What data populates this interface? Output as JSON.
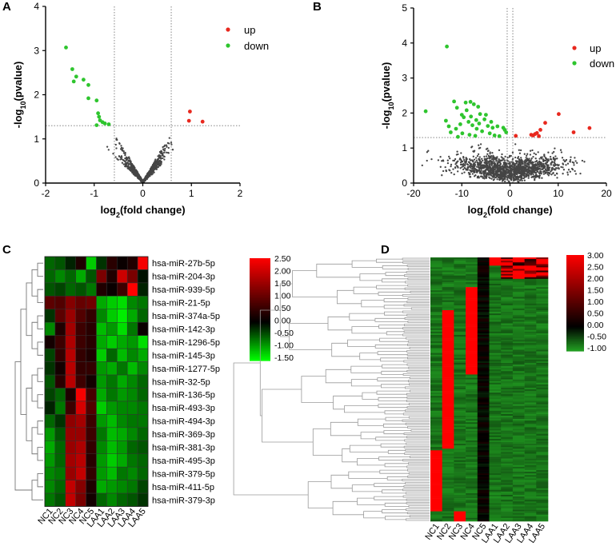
{
  "panels": [
    "A",
    "B",
    "C",
    "D"
  ],
  "chart_data": [
    {
      "panel": "A",
      "type": "scatter",
      "title": "",
      "xlabel": "log2(fold change)",
      "ylabel": "-log10(pvalue)",
      "xlim": [
        -2,
        2
      ],
      "ylim": [
        0,
        4
      ],
      "xticks": [
        "-2",
        "-1",
        "0",
        "1",
        "2"
      ],
      "yticks": [
        "0",
        "1",
        "2",
        "3",
        "4"
      ],
      "thresholds": {
        "x": [
          -0.585,
          0.585
        ],
        "y": 1.3
      },
      "legend": {
        "position": "top-right"
      },
      "series": [
        {
          "name": "up",
          "color": "#e8281e",
          "points": [
            [
              0.97,
              1.62
            ],
            [
              0.95,
              1.41
            ],
            [
              1.23,
              1.39
            ]
          ]
        },
        {
          "name": "down",
          "color": "#2ec52e",
          "points": [
            [
              -1.58,
              3.07
            ],
            [
              -1.45,
              2.58
            ],
            [
              -1.37,
              2.41
            ],
            [
              -1.42,
              2.3
            ],
            [
              -1.22,
              2.34
            ],
            [
              -1.12,
              2.22
            ],
            [
              -1.12,
              1.92
            ],
            [
              -0.95,
              1.87
            ],
            [
              -0.92,
              1.58
            ],
            [
              -0.9,
              1.5
            ],
            [
              -0.88,
              1.42
            ],
            [
              -0.83,
              1.38
            ],
            [
              -0.78,
              1.35
            ],
            [
              -0.7,
              1.33
            ],
            [
              -0.95,
              1.31
            ]
          ]
        }
      ],
      "background": {
        "color": "#454545",
        "note": "non-significant points"
      }
    },
    {
      "panel": "B",
      "type": "scatter",
      "title": "",
      "xlabel": "log2(fold change)",
      "ylabel": "-log10(pvalue)",
      "xlim": [
        -20,
        20
      ],
      "ylim": [
        0,
        5
      ],
      "xticks": [
        "-20",
        "-10",
        "0",
        "10",
        "20"
      ],
      "yticks": [
        "0",
        "1",
        "2",
        "3",
        "4",
        "5"
      ],
      "thresholds": {
        "x": [
          -0.585,
          0.585
        ],
        "y": 1.3
      },
      "legend": {
        "position": "top-right"
      },
      "series": [
        {
          "name": "up",
          "color": "#e8281e",
          "points": [
            [
              16.5,
              1.57
            ],
            [
              13.2,
              1.45
            ],
            [
              10.1,
              1.97
            ],
            [
              7.3,
              1.72
            ],
            [
              6.3,
              1.52
            ],
            [
              5.6,
              1.43
            ],
            [
              5.2,
              1.4
            ],
            [
              4.4,
              1.38
            ],
            [
              4.8,
              1.36
            ],
            [
              1.2,
              1.35
            ],
            [
              6.0,
              1.34
            ]
          ]
        },
        {
          "name": "down",
          "color": "#2ec52e",
          "points": [
            [
              -13.1,
              3.9
            ],
            [
              -17.5,
              2.05
            ],
            [
              -13.3,
              1.78
            ],
            [
              -11.6,
              2.33
            ],
            [
              -11.0,
              2.15
            ],
            [
              -9.2,
              2.3
            ],
            [
              -8.2,
              2.32
            ],
            [
              -7.5,
              2.25
            ],
            [
              -6.6,
              2.18
            ],
            [
              -6.2,
              1.97
            ],
            [
              -5.3,
              1.82
            ],
            [
              -4.6,
              1.63
            ],
            [
              -3.6,
              1.58
            ],
            [
              -2.6,
              1.62
            ],
            [
              -1.4,
              1.58
            ],
            [
              -1.1,
              1.52
            ],
            [
              -0.8,
              1.45
            ],
            [
              -9.6,
              1.88
            ],
            [
              -8.6,
              1.75
            ],
            [
              -10.3,
              1.68
            ],
            [
              -7.8,
              1.65
            ],
            [
              -6.9,
              1.55
            ],
            [
              -5.8,
              1.48
            ],
            [
              -11.2,
              1.55
            ],
            [
              -12.3,
              1.45
            ],
            [
              -9.9,
              1.42
            ],
            [
              -8.4,
              1.38
            ],
            [
              -7.2,
              1.35
            ],
            [
              -4.2,
              1.42
            ],
            [
              -3.2,
              1.36
            ],
            [
              -2.2,
              1.34
            ],
            [
              -10.8,
              1.32
            ],
            [
              -6.4,
              1.7
            ],
            [
              -9.0,
              2.08
            ],
            [
              -5.0,
              1.95
            ],
            [
              -3.9,
              1.75
            ],
            [
              -10.0,
              1.95
            ],
            [
              -8.1,
              1.9
            ],
            [
              -7.0,
              1.8
            ],
            [
              -12.7,
              1.62
            ]
          ]
        }
      ],
      "background": {
        "color": "#454545",
        "note": "non-significant points"
      }
    },
    {
      "panel": "C",
      "type": "heatmap",
      "title": "",
      "columns": [
        "NC1",
        "NC2",
        "NC3",
        "NC4",
        "NC5",
        "LAA1",
        "LAA2",
        "LAA3",
        "LAA4",
        "LAA5"
      ],
      "rows": [
        "hsa-miR-27b-5p",
        "hsa-miR-204-3p",
        "hsa-miR-939-5p",
        "hsa-miR-21-5p",
        "hsa-miR-374a-5p",
        "hsa-miR-142-3p",
        "hsa-miR-1296-5p",
        "hsa-miR-145-3p",
        "hsa-miR-1277-5p",
        "hsa-miR-32-5p",
        "hsa-miR-136-5p",
        "hsa-miR-493-3p",
        "hsa-miR-494-3p",
        "hsa-miR-369-3p",
        "hsa-miR-381-3p",
        "hsa-miR-495-3p",
        "hsa-miR-379-5p",
        "hsa-miR-411-5p",
        "hsa-miR-379-3p"
      ],
      "values": [
        [
          -0.6,
          -0.5,
          -0.2,
          0.3,
          -1.2,
          -0.3,
          0.4,
          0.1,
          0.3,
          2.4
        ],
        [
          -0.6,
          -0.8,
          -0.6,
          -1.0,
          -0.5,
          1.2,
          0.3,
          2.0,
          1.2,
          -0.1
        ],
        [
          -0.5,
          -0.4,
          -0.6,
          -0.5,
          -0.7,
          0.3,
          0.1,
          0.6,
          2.5,
          -0.2
        ],
        [
          0.9,
          0.8,
          1.3,
          1.0,
          1.1,
          -1.0,
          -1.2,
          -1.3,
          -0.8,
          -0.7
        ],
        [
          -0.3,
          0.9,
          1.5,
          0.8,
          0.5,
          -0.8,
          -1.2,
          -1.4,
          -1.0,
          -0.6
        ],
        [
          -0.8,
          0.3,
          1.6,
          0.6,
          0.4,
          -1.1,
          -0.9,
          -1.3,
          -0.7,
          0.1
        ],
        [
          0.2,
          0.6,
          1.7,
          0.6,
          0.4,
          -1.0,
          -1.2,
          -1.0,
          -0.9,
          -1.3
        ],
        [
          -0.4,
          0.5,
          1.8,
          0.5,
          0.3,
          -1.2,
          -0.6,
          -1.1,
          -0.8,
          -1.0
        ],
        [
          -0.3,
          0.2,
          1.8,
          0.5,
          0.5,
          -0.9,
          -1.0,
          -0.7,
          -1.1,
          -0.8
        ],
        [
          -0.5,
          0.4,
          1.8,
          0.6,
          0.2,
          -0.9,
          -0.7,
          -1.0,
          -0.8,
          -0.6
        ],
        [
          -0.4,
          -0.6,
          0.3,
          2.4,
          0.7,
          -1.0,
          -0.7,
          -0.9,
          -0.8,
          -0.6
        ],
        [
          -0.2,
          -0.7,
          0.6,
          2.1,
          0.8,
          -1.2,
          -0.9,
          -0.8,
          -0.8,
          -0.7
        ],
        [
          -0.6,
          -0.3,
          1.4,
          1.6,
          0.6,
          -0.9,
          -1.1,
          -0.8,
          -0.7,
          -0.7
        ],
        [
          -0.9,
          -0.5,
          1.5,
          1.5,
          0.6,
          -0.7,
          -1.1,
          -1.0,
          -0.8,
          -0.6
        ],
        [
          -1.0,
          -0.6,
          1.5,
          1.7,
          0.5,
          -0.8,
          -1.1,
          -0.9,
          -0.6,
          -0.5
        ],
        [
          -0.9,
          -0.6,
          1.6,
          1.8,
          0.4,
          -0.9,
          -1.2,
          -1.0,
          -0.7,
          -0.6
        ],
        [
          -0.8,
          -0.7,
          1.5,
          1.9,
          0.5,
          -0.9,
          -1.1,
          -0.7,
          -0.8,
          -0.6
        ],
        [
          -0.8,
          -0.6,
          1.9,
          1.3,
          0.3,
          -1.0,
          -0.9,
          -0.8,
          -0.7,
          -0.4
        ],
        [
          -0.7,
          -0.5,
          1.9,
          1.2,
          0.2,
          -0.6,
          -0.8,
          -0.6,
          -0.5,
          -0.3
        ]
      ],
      "colorbar": {
        "ticks": [
          "2.50",
          "2.00",
          "1.50",
          "1.00",
          "0.50",
          "0.00",
          "-0.50",
          "-1.00",
          "-1.50"
        ],
        "min": -1.5,
        "max": 2.5,
        "low_color": "#00ff00",
        "mid_color": "#000000",
        "high_color": "#ff0000"
      }
    },
    {
      "panel": "D",
      "type": "heatmap",
      "title": "",
      "columns": [
        "NC1",
        "NC2",
        "NC3",
        "NC4",
        "NC5",
        "LAA1",
        "LAA2",
        "LAA3",
        "LAA4",
        "LAA5"
      ],
      "colorbar": {
        "ticks": [
          "3.00",
          "2.50",
          "2.00",
          "1.50",
          "1.00",
          "0.50",
          "0.00",
          "-0.50",
          "-1.00"
        ],
        "min": -1.0,
        "max": 3.0,
        "low_color": "#22a022",
        "mid_color": "#000000",
        "high_color": "#ff0000"
      },
      "blocks": [
        {
          "columns": [
            "LAA1"
          ],
          "rows_fraction": [
            0.0,
            0.03
          ],
          "level": "high"
        },
        {
          "columns": [
            "LAA2",
            "LAA3",
            "LAA4",
            "LAA5"
          ],
          "rows_fraction": [
            0.0,
            0.08
          ],
          "level": "mixed-high"
        },
        {
          "columns": [
            "NC4"
          ],
          "rows_fraction": [
            0.11,
            0.44
          ],
          "level": "high"
        },
        {
          "columns": [
            "NC2"
          ],
          "rows_fraction": [
            0.2,
            0.72
          ],
          "level": "high"
        },
        {
          "columns": [
            "NC1"
          ],
          "rows_fraction": [
            0.73,
            0.96
          ],
          "level": "high"
        },
        {
          "columns": [
            "NC3"
          ],
          "rows_fraction": [
            0.96,
            1.0
          ],
          "level": "high"
        }
      ]
    }
  ]
}
